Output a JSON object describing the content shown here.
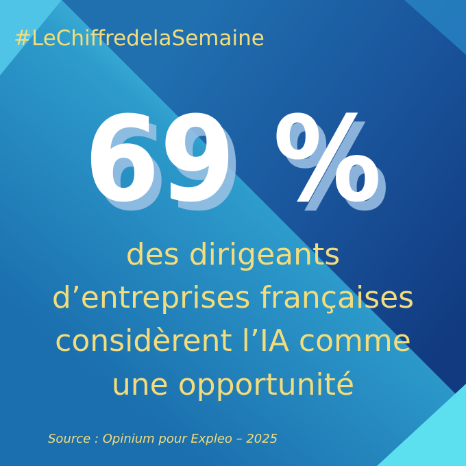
{
  "hashtag": "#LeChiffredelaSemaine",
  "headline": "69 %",
  "description": [
    "des dirigeants",
    "d’entreprises françaises",
    "considèrent l’IA comme",
    "une opportunité"
  ],
  "source": "Source : Opinium pour Expleo – 2025"
}
